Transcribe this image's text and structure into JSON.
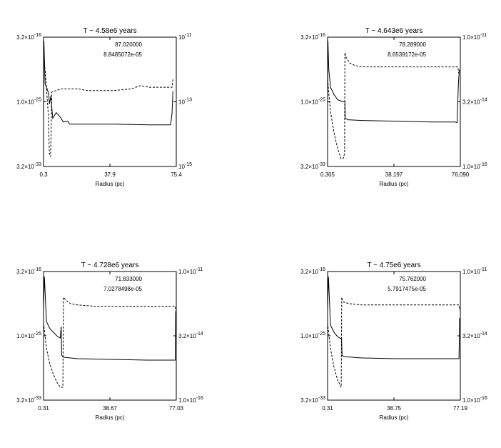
{
  "chart_data": [
    {
      "type": "line",
      "title": "T ~ 4.58e6 years",
      "xlabel": "Radius (pc)",
      "x_ticks": [
        "0.3",
        "37.9",
        "75.4"
      ],
      "y_left_ticks": [
        "3.2×10^-16",
        "1.0×10^-25",
        "3.2×10^-33"
      ],
      "y_right_ticks": [
        "10^-11",
        "10^-13",
        "10^-15"
      ],
      "annotations": [
        "87.020000",
        "8.8485072e-05"
      ],
      "xlim": [
        0.3,
        75.4
      ],
      "y_left_log10_range": [
        -33.5,
        -15.5
      ],
      "y_right_log10_range": [
        -15,
        -11
      ],
      "series": [
        {
          "style": "solid",
          "axis": "left",
          "x": [
            0.3,
            0.5,
            1.2,
            2.5,
            3.3,
            3.6,
            4.4,
            5.5,
            7.5,
            10,
            11.5,
            14,
            15,
            20,
            40,
            60,
            71.3,
            72.2,
            73,
            73.5
          ],
          "y": [
            -27.5,
            -16.0,
            -22.0,
            -22.8,
            -23.5,
            -24.8,
            -23.7,
            -26.8,
            -26.0,
            -26.7,
            -27.3,
            -27.2,
            -27.6,
            -27.6,
            -27.6,
            -27.7,
            -27.7,
            -27.7,
            -26.0,
            -23.0
          ]
        },
        {
          "style": "dashed",
          "axis": "right",
          "x": [
            0.3,
            0.5,
            1.2,
            2.0,
            3.0,
            3.6,
            4.3,
            5.0,
            10,
            16,
            20,
            25,
            30,
            40,
            50,
            55,
            60,
            70,
            73,
            73.5
          ],
          "y": [
            -11.6,
            -11.8,
            -12.0,
            -12.6,
            -13.4,
            -14.6,
            -14.7,
            -12.7,
            -12.6,
            -12.6,
            -12.6,
            -12.65,
            -12.65,
            -12.65,
            -12.6,
            -12.5,
            -12.55,
            -12.55,
            -12.55,
            -12.3
          ]
        }
      ]
    },
    {
      "type": "line",
      "title": "T ~ 4.643e6 years",
      "xlabel": "Radius (pc)",
      "x_ticks": [
        "0.305",
        "38.197",
        "76.090"
      ],
      "y_left_ticks": [
        "3.2×10^-16",
        "1.0×10^-25",
        "3.2×10^-33"
      ],
      "y_right_ticks": [
        "1.0×10^-11",
        "3.2×10^-14",
        "1.0×10^-16"
      ],
      "annotations": [
        "78.289000",
        "8.6539172e-05"
      ],
      "xlim": [
        0.305,
        76.09
      ],
      "y_left_log10_range": [
        -33.5,
        -15.5
      ],
      "y_right_log10_range": [
        -16,
        -11
      ],
      "series": [
        {
          "style": "solid",
          "axis": "left",
          "x": [
            0.305,
            0.5,
            1,
            2,
            4,
            6,
            8,
            10.2,
            10.4,
            12,
            20,
            40,
            60,
            73,
            74.2,
            75,
            75.5
          ],
          "y": [
            -25.5,
            -16.0,
            -20.0,
            -22.5,
            -23.5,
            -24.2,
            -24.4,
            -24.5,
            -26.8,
            -27.0,
            -27.1,
            -27.2,
            -27.3,
            -27.3,
            -27.4,
            -22.0,
            -20.0
          ]
        },
        {
          "style": "dashed",
          "axis": "right",
          "x": [
            0.305,
            1,
            2,
            4,
            6,
            8,
            9.2,
            10.0,
            10.2,
            11,
            13,
            16,
            20,
            40,
            60,
            74.7,
            75.2
          ],
          "y": [
            -12.5,
            -13.2,
            -13.9,
            -14.7,
            -15.3,
            -15.7,
            -15.7,
            -15.5,
            -11.6,
            -11.8,
            -12.0,
            -12.1,
            -12.15,
            -12.15,
            -12.15,
            -12.15,
            -12.4
          ]
        }
      ]
    },
    {
      "type": "line",
      "title": "T ~ 4.728e6 years",
      "xlabel": "Radius (pc)",
      "x_ticks": [
        "0.31",
        "38.67",
        "77.03"
      ],
      "y_left_ticks": [
        "3.2×10^-16",
        "1.0×10^-25",
        "3.2×10^-33"
      ],
      "y_right_ticks": [
        "1.0×10^-11",
        "3.2×10^-14",
        "1.0×10^-16"
      ],
      "annotations": [
        "71.833000",
        "7.0278498e-05"
      ],
      "xlim": [
        0.31,
        77.03
      ],
      "y_left_log10_range": [
        -33.5,
        -15.5
      ],
      "y_right_log10_range": [
        -16,
        -11
      ],
      "series": [
        {
          "style": "solid",
          "axis": "left",
          "x": [
            0.31,
            0.8,
            2,
            4,
            6,
            8,
            10,
            10.5,
            10.8,
            11.3,
            12,
            20,
            40,
            60,
            75,
            76.4,
            76.7
          ],
          "y": [
            -21.0,
            -16.2,
            -22.5,
            -23.5,
            -24.0,
            -24.5,
            -24.8,
            -23.2,
            -27.2,
            -27.4,
            -27.5,
            -27.7,
            -27.8,
            -27.9,
            -27.9,
            -27.9,
            -21.0
          ]
        },
        {
          "style": "dashed",
          "axis": "right",
          "x": [
            0.31,
            2,
            4,
            6,
            8,
            10,
            11.5,
            11.8,
            13,
            16,
            20,
            30,
            40,
            60,
            76.4,
            76.7
          ],
          "y": [
            -13.0,
            -14.0,
            -14.6,
            -15.0,
            -15.3,
            -15.5,
            -15.5,
            -12.0,
            -12.1,
            -12.25,
            -12.3,
            -12.35,
            -12.35,
            -12.35,
            -12.35,
            -12.5
          ]
        }
      ]
    },
    {
      "type": "line",
      "title": "T ~ 4.75e6 years",
      "xlabel": "Radius (pc)",
      "x_ticks": [
        "0.31",
        "38.75",
        "77.19"
      ],
      "y_left_ticks": [
        "3.2×10^-16",
        "1.0×10^-25",
        "3.2×10^-33"
      ],
      "y_right_ticks": [
        "1.0×10^-11",
        "3.2×10^-14",
        "1.0×10^-16"
      ],
      "annotations": [
        "75.762000",
        "5.7917475e-05"
      ],
      "xlim": [
        0.31,
        77.19
      ],
      "y_left_log10_range": [
        -33.5,
        -15.5
      ],
      "y_right_log10_range": [
        -16,
        -11
      ],
      "series": [
        {
          "style": "solid",
          "axis": "left",
          "x": [
            0.31,
            0.8,
            2,
            4,
            6,
            8,
            8.4,
            8.7,
            9.5,
            20,
            40,
            60,
            75,
            76.4,
            76.8
          ],
          "y": [
            -21.0,
            -16.2,
            -23.0,
            -24.0,
            -24.6,
            -24.9,
            -25.0,
            -27.2,
            -27.4,
            -27.6,
            -27.7,
            -27.7,
            -27.7,
            -27.7,
            -22.0
          ]
        },
        {
          "style": "dashed",
          "axis": "right",
          "x": [
            0.31,
            2,
            4,
            6,
            8.2,
            8.5,
            9,
            10,
            13,
            20,
            40,
            60,
            76.4,
            76.8
          ],
          "y": [
            -13.0,
            -14.0,
            -14.7,
            -15.2,
            -15.5,
            -12.0,
            -12.15,
            -12.2,
            -12.25,
            -12.3,
            -12.3,
            -12.3,
            -12.3,
            -12.5
          ]
        }
      ]
    }
  ]
}
